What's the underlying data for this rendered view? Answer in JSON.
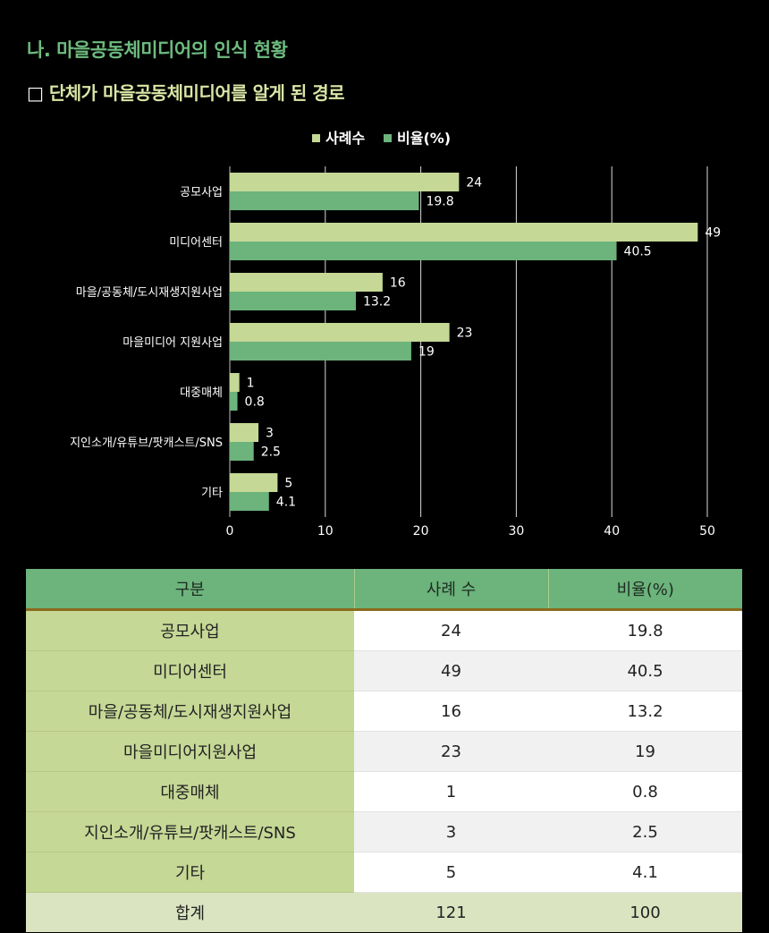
{
  "section_title": "나. 마을공동체미디어의 인식 현황",
  "subtitle_marker": "□",
  "subtitle": "단체가 마을공동체미디어를 알게 된 경로",
  "chart_data": {
    "type": "bar",
    "orientation": "horizontal",
    "categories": [
      "공모사업",
      "미디어센터",
      "마을/공동체/도시재생지원사업",
      "마을미디어 지원사업",
      "대중매체",
      "지인소개/유튜브/팟캐스트/SNS",
      "기타"
    ],
    "series": [
      {
        "name": "사례수",
        "values": [
          24,
          49,
          16,
          23,
          1,
          3,
          5
        ],
        "color": "#c5d896"
      },
      {
        "name": "비율(%)",
        "values": [
          19.8,
          40.5,
          13.2,
          19,
          0.8,
          2.5,
          4.1
        ],
        "color": "#6cb37c"
      }
    ],
    "xlim": [
      0,
      50
    ],
    "xticks": [
      0,
      10,
      20,
      30,
      40,
      50
    ],
    "grid": true,
    "legend": "top"
  },
  "table": {
    "headers": [
      "구분",
      "사례 수",
      "비율(%)"
    ],
    "rows": [
      [
        "공모사업",
        "24",
        "19.8"
      ],
      [
        "미디어센터",
        "49",
        "40.5"
      ],
      [
        "마을/공동체/도시재생지원사업",
        "16",
        "13.2"
      ],
      [
        "마을미디어지원사업",
        "23",
        "19"
      ],
      [
        "대중매체",
        "1",
        "0.8"
      ],
      [
        "지인소개/유튜브/팟캐스트/SNS",
        "3",
        "2.5"
      ],
      [
        "기타",
        "5",
        "4.1"
      ]
    ],
    "total": [
      "합계",
      "121",
      "100"
    ]
  }
}
